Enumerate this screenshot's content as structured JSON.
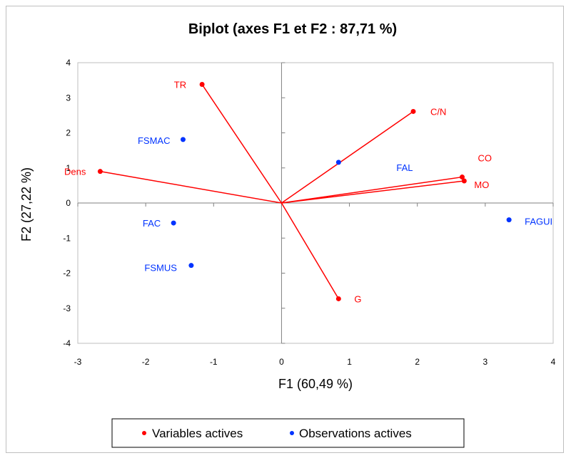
{
  "chart_data": {
    "type": "scatter",
    "title": "Biplot (axes F1 et F2 : 87,71 %)",
    "xlabel": "F1 (60,49 %)",
    "ylabel": "F2 (27,22 %)",
    "xlim": [
      -3,
      4
    ],
    "ylim": [
      -4,
      4
    ],
    "x_ticks": [
      "-3",
      "-2",
      "-1",
      "0",
      "1",
      "2",
      "3",
      "4"
    ],
    "y_ticks": [
      "-4",
      "-3",
      "-2",
      "-1",
      "0",
      "1",
      "2",
      "3",
      "4"
    ],
    "grid": false,
    "legend_position": "bottom",
    "colors": {
      "variables": "#ff0000",
      "observations": "#0033ff",
      "axes": "#808080"
    },
    "series": [
      {
        "name": "Variables actives",
        "vectors": true,
        "points": [
          {
            "label": "TR",
            "x": -1.17,
            "y": 3.38
          },
          {
            "label": "C/N",
            "x": 1.94,
            "y": 2.61
          },
          {
            "label": "Dens",
            "x": -2.67,
            "y": 0.9
          },
          {
            "label": "CO",
            "x": 2.66,
            "y": 0.74
          },
          {
            "label": "MO",
            "x": 2.69,
            "y": 0.63
          },
          {
            "label": "G",
            "x": 0.84,
            "y": -2.73
          }
        ]
      },
      {
        "name": "Observations actives",
        "vectors": false,
        "points": [
          {
            "label": "FSMAC",
            "x": -1.45,
            "y": 1.81
          },
          {
            "label": "FAL",
            "x": 0.84,
            "y": 1.16
          },
          {
            "label": "FAC",
            "x": -1.59,
            "y": -0.57
          },
          {
            "label": "FAGUI",
            "x": 3.35,
            "y": -0.48
          },
          {
            "label": "FSMUS",
            "x": -1.33,
            "y": -1.78
          }
        ]
      }
    ]
  }
}
